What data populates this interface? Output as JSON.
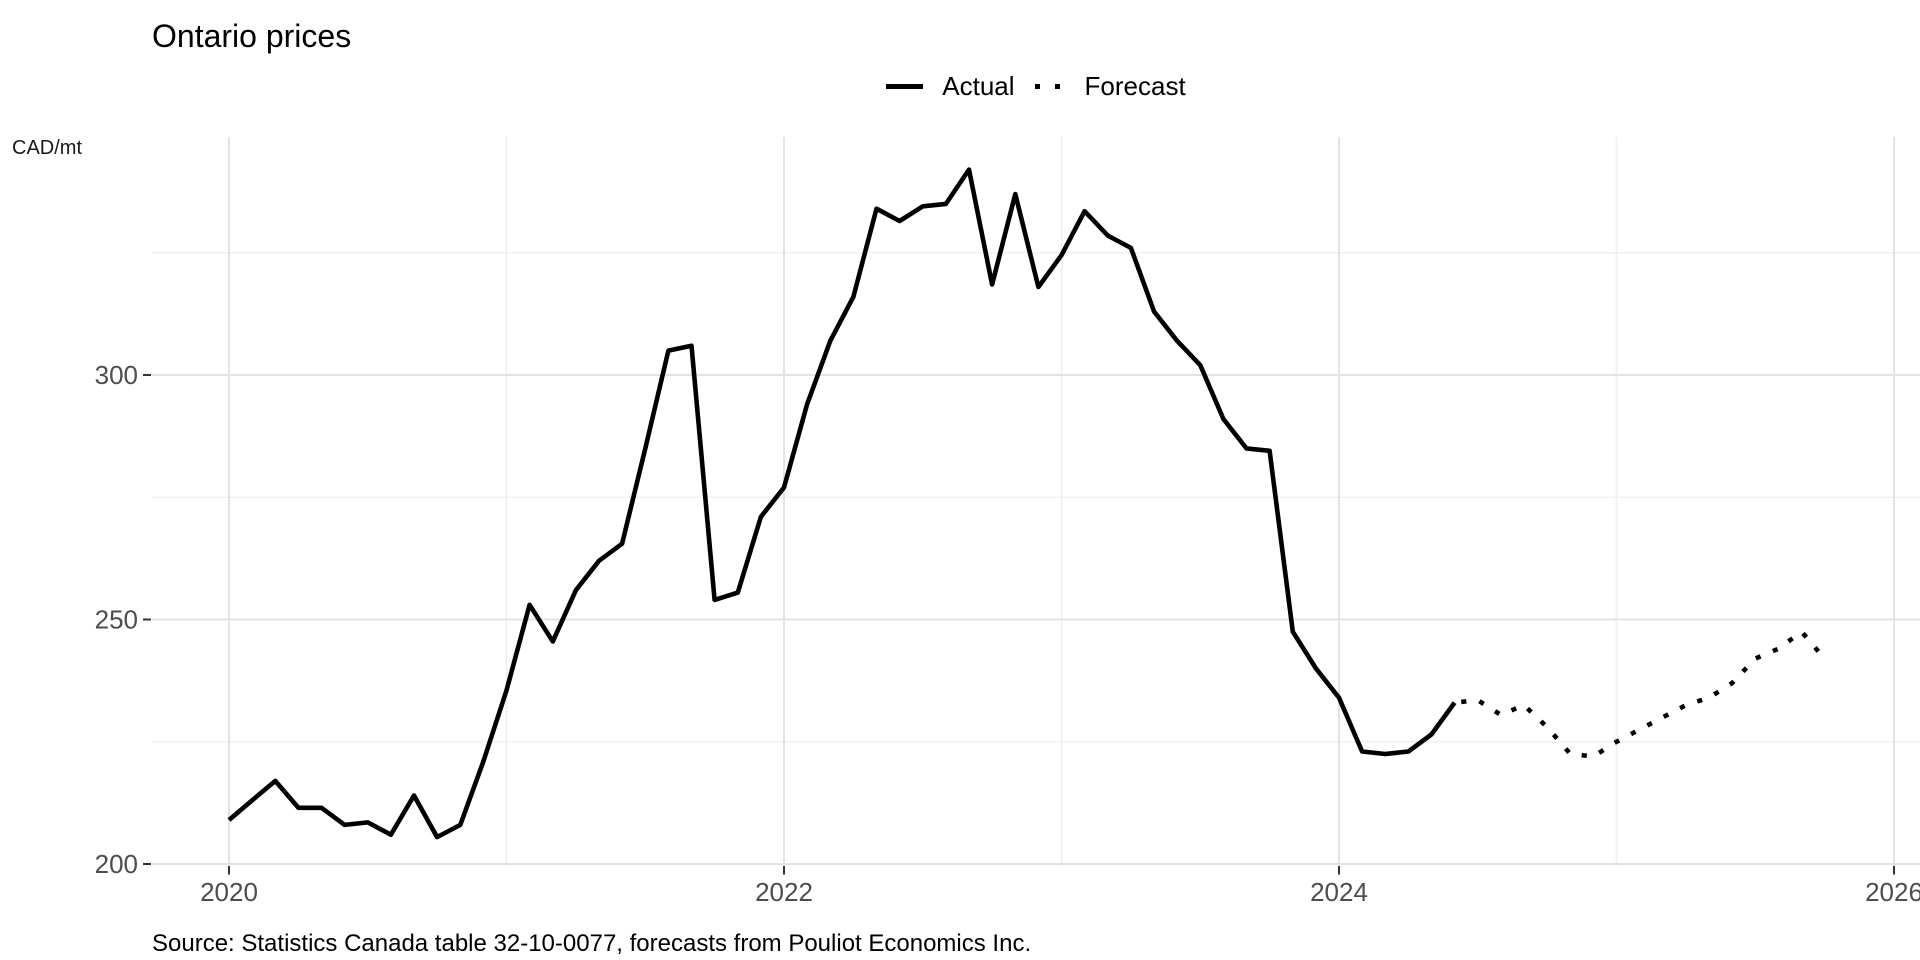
{
  "page": {
    "background": "#ffffff"
  },
  "chart_data": {
    "type": "line",
    "title": "Ontario prices",
    "ylabel": "CAD/mt",
    "caption": "Source: Statistics Canada table 32-10-0077, forecasts from Pouliot Economics Inc.",
    "x_axis": {
      "tick_labels": [
        "2020",
        "2022",
        "2024",
        "2026"
      ],
      "tick_years": [
        2020,
        2022,
        2024,
        2026
      ],
      "minor_grid_years": [
        2021,
        2023,
        2025
      ],
      "grid": "on"
    },
    "y_axis": {
      "tick_labels": [
        "200",
        "250",
        "300"
      ],
      "tick_values": [
        200,
        250,
        300
      ],
      "minor_grid_values": [
        225,
        275,
        325
      ],
      "range": [
        198,
        349
      ],
      "grid": "on"
    },
    "legend": [
      {
        "label": "Actual",
        "style": "solid"
      },
      {
        "label": "Forecast",
        "style": "dotted"
      }
    ],
    "series": [
      {
        "name": "Actual",
        "style": "solid",
        "frequency": "monthly",
        "start_month": "2020-01",
        "end_month": "2024-06",
        "values": [
          209,
          213,
          217,
          211.5,
          211.5,
          208,
          208.5,
          206,
          214,
          205.5,
          208,
          221,
          235.5,
          253,
          245.5,
          256,
          262,
          265.5,
          285,
          305,
          306,
          254,
          255.5,
          271,
          277,
          294,
          307,
          316,
          334,
          331.5,
          334.5,
          335,
          342,
          318.5,
          337,
          318,
          324.5,
          333.5,
          328.5,
          326,
          313,
          307,
          302,
          291,
          285,
          284.5,
          247.5,
          240,
          234,
          223,
          222.5,
          223,
          226.5,
          233
        ]
      },
      {
        "name": "Forecast",
        "style": "dotted",
        "frequency": "monthly",
        "start_month": "2024-07",
        "end_month": "2025-10",
        "values": [
          233.5,
          230.5,
          232.5,
          228,
          222.5,
          222,
          225,
          227.5,
          230,
          232.5,
          234,
          237,
          242,
          244,
          247.5,
          242
        ]
      }
    ],
    "colors": {
      "line": "#000000",
      "axis_text": "#4d4d4d",
      "tick_mark": "#333333",
      "grid_major": "#e3e3e3",
      "grid_minor": "#f0f0f0"
    }
  }
}
